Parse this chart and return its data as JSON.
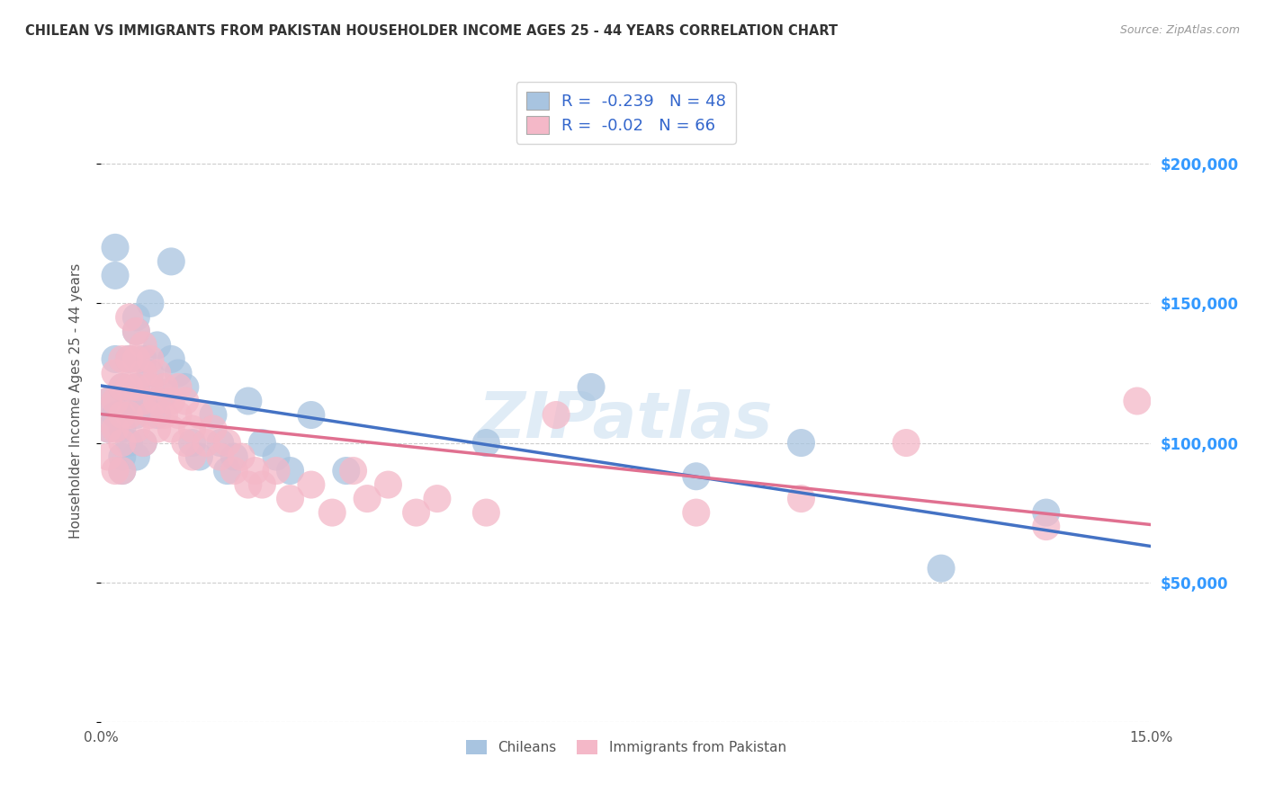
{
  "title": "CHILEAN VS IMMIGRANTS FROM PAKISTAN HOUSEHOLDER INCOME AGES 25 - 44 YEARS CORRELATION CHART",
  "source": "Source: ZipAtlas.com",
  "ylabel": "Householder Income Ages 25 - 44 years",
  "xlim": [
    0.0,
    0.15
  ],
  "ylim": [
    0,
    230000
  ],
  "xticks": [
    0.0,
    0.03,
    0.06,
    0.09,
    0.12,
    0.15
  ],
  "xticklabels": [
    "0.0%",
    "",
    "",
    "",
    "",
    "15.0%"
  ],
  "yticks": [
    0,
    50000,
    100000,
    150000,
    200000
  ],
  "yticklabels": [
    "",
    "$50,000",
    "$100,000",
    "$150,000",
    "$200,000"
  ],
  "chileans": {
    "label": "Chileans",
    "color": "#a8c4e0",
    "line_color": "#4472c4",
    "R": -0.239,
    "N": 48,
    "x": [
      0.001,
      0.001,
      0.002,
      0.002,
      0.002,
      0.002,
      0.003,
      0.003,
      0.003,
      0.003,
      0.004,
      0.004,
      0.004,
      0.005,
      0.005,
      0.005,
      0.005,
      0.005,
      0.006,
      0.006,
      0.006,
      0.007,
      0.007,
      0.008,
      0.008,
      0.009,
      0.01,
      0.01,
      0.011,
      0.012,
      0.013,
      0.014,
      0.016,
      0.017,
      0.018,
      0.019,
      0.021,
      0.023,
      0.025,
      0.027,
      0.03,
      0.035,
      0.055,
      0.07,
      0.085,
      0.1,
      0.12,
      0.135
    ],
    "y": [
      115000,
      105000,
      170000,
      160000,
      130000,
      110000,
      120000,
      105000,
      95000,
      90000,
      130000,
      115000,
      100000,
      145000,
      140000,
      120000,
      110000,
      95000,
      130000,
      115000,
      100000,
      150000,
      125000,
      135000,
      110000,
      118000,
      165000,
      130000,
      125000,
      120000,
      100000,
      95000,
      110000,
      100000,
      90000,
      95000,
      115000,
      100000,
      95000,
      90000,
      110000,
      90000,
      100000,
      120000,
      88000,
      100000,
      55000,
      75000
    ]
  },
  "pakistan": {
    "label": "Immigrants from Pakistan",
    "color": "#f4b8c8",
    "line_color": "#e07090",
    "R": -0.02,
    "N": 66,
    "x": [
      0.001,
      0.001,
      0.001,
      0.002,
      0.002,
      0.002,
      0.002,
      0.003,
      0.003,
      0.003,
      0.003,
      0.003,
      0.004,
      0.004,
      0.004,
      0.004,
      0.005,
      0.005,
      0.005,
      0.005,
      0.006,
      0.006,
      0.006,
      0.006,
      0.007,
      0.007,
      0.007,
      0.008,
      0.008,
      0.008,
      0.009,
      0.009,
      0.01,
      0.01,
      0.011,
      0.011,
      0.012,
      0.012,
      0.013,
      0.013,
      0.014,
      0.015,
      0.016,
      0.017,
      0.018,
      0.019,
      0.02,
      0.021,
      0.022,
      0.023,
      0.025,
      0.027,
      0.03,
      0.033,
      0.036,
      0.038,
      0.041,
      0.045,
      0.048,
      0.055,
      0.065,
      0.085,
      0.1,
      0.115,
      0.135,
      0.148
    ],
    "y": [
      115000,
      105000,
      95000,
      125000,
      115000,
      105000,
      90000,
      130000,
      120000,
      110000,
      100000,
      90000,
      145000,
      130000,
      120000,
      110000,
      140000,
      130000,
      120000,
      105000,
      135000,
      125000,
      115000,
      100000,
      130000,
      120000,
      110000,
      125000,
      115000,
      105000,
      120000,
      110000,
      115000,
      105000,
      120000,
      110000,
      100000,
      115000,
      105000,
      95000,
      110000,
      100000,
      105000,
      95000,
      100000,
      90000,
      95000,
      85000,
      90000,
      85000,
      90000,
      80000,
      85000,
      75000,
      90000,
      80000,
      85000,
      75000,
      80000,
      75000,
      110000,
      75000,
      80000,
      100000,
      70000,
      115000
    ]
  },
  "watermark": "ZIPatlas",
  "background_color": "#ffffff",
  "grid_color": "#cccccc",
  "title_color": "#333333",
  "right_ytick_color": "#3399ff",
  "dot_size": 500
}
